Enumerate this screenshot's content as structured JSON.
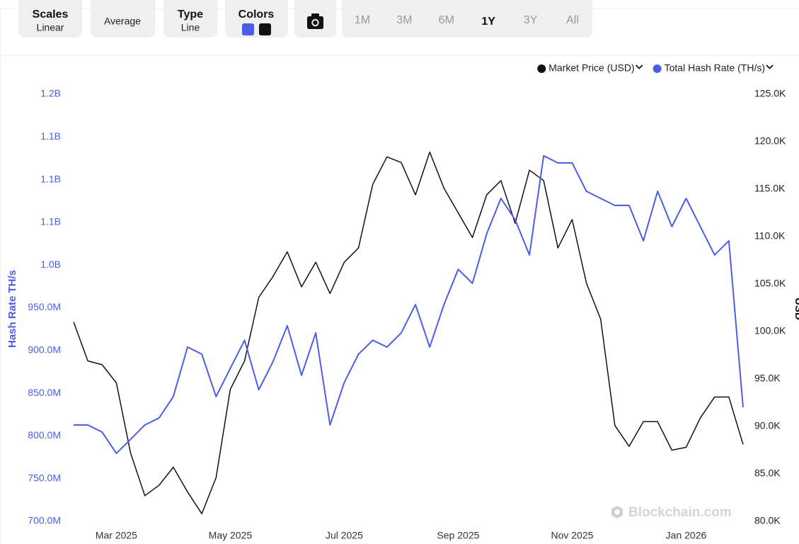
{
  "toolbar": {
    "scales": {
      "title": "Scales",
      "value": "Linear"
    },
    "average": "Average",
    "type": {
      "title": "Type",
      "value": "Line"
    },
    "colors_title": "Colors",
    "ranges": [
      "1M",
      "3M",
      "6M",
      "1Y",
      "3Y",
      "All"
    ],
    "active_range": 3
  },
  "watermark": "Blockchain.com",
  "chart_data": {
    "type": "line",
    "y_label": "Hash Rate TH/s",
    "y2_label": "USD",
    "categories": [
      null,
      null,
      null,
      "Mar 2025",
      null,
      null,
      null,
      null,
      null,
      null,
      null,
      "May 2025",
      null,
      null,
      null,
      null,
      null,
      null,
      null,
      "Jul 2025",
      null,
      null,
      null,
      null,
      null,
      null,
      null,
      "Sep 2025",
      null,
      null,
      null,
      null,
      null,
      null,
      null,
      "Nov 2025",
      null,
      null,
      null,
      null,
      null,
      null,
      null,
      "Jan 2026",
      null,
      null,
      null,
      null
    ],
    "series": [
      {
        "name": "Market Price (USD)",
        "color": "#111111",
        "axis": "y2",
        "values": [
          101000,
          96900,
          96500,
          94600,
          87200,
          82700,
          83800,
          85700,
          83100,
          80800,
          84600,
          93900,
          96900,
          103600,
          105800,
          108400,
          104700,
          107300,
          104000,
          107300,
          108800,
          115500,
          118400,
          117800,
          114400,
          118900,
          115100,
          112500,
          109900,
          114400,
          115900,
          111400,
          117000,
          115900,
          108800,
          111800,
          105100,
          101300,
          90100,
          87900,
          90500,
          90500,
          87500,
          87800,
          90900,
          93100,
          93100,
          88100
        ]
      },
      {
        "name": "Total Hash Rate (TH/s)",
        "color": "#4b5ee4",
        "axis": "y",
        "values": [
          812800000,
          812800000,
          804500000,
          779600000,
          796000000,
          812800000,
          821000000,
          846000000,
          904000000,
          895700000,
          846000000,
          879000000,
          912000000,
          854000000,
          887000000,
          929000000,
          871000000,
          920600000,
          812800000,
          862500000,
          895700000,
          912000000,
          904000000,
          920600000,
          953700000,
          904000000,
          953700000,
          995000000,
          978600000,
          1036600000,
          1078000000,
          1053000000,
          1011800000,
          1127900000,
          1119600000,
          1119600000,
          1086400000,
          1078000000,
          1069800000,
          1069800000,
          1028400000,
          1086400000,
          1045000000,
          1078000000,
          1045000000,
          1011800000,
          1028400000,
          833500000
        ]
      }
    ],
    "ylim": [
      700000000,
      1200000000
    ],
    "yticks": [
      {
        "value": 700000000,
        "label": "700.0M"
      },
      {
        "value": 750000000,
        "label": "750.0M"
      },
      {
        "value": 800000000,
        "label": "800.0M"
      },
      {
        "value": 850000000,
        "label": "850.0M"
      },
      {
        "value": 900000000,
        "label": "900.0M"
      },
      {
        "value": 950000000,
        "label": "950.0M"
      },
      {
        "value": 1000000000,
        "label": "1.0B"
      },
      {
        "value": 1050000000,
        "label": "1.1B"
      },
      {
        "value": 1100000000,
        "label": "1.1B"
      },
      {
        "value": 1150000000,
        "label": "1.1B"
      },
      {
        "value": 1200000000,
        "label": "1.2B"
      }
    ],
    "y2lim": [
      80000,
      125000
    ],
    "y2ticks": [
      {
        "value": 80000,
        "label": "80.0K"
      },
      {
        "value": 85000,
        "label": "85.0K"
      },
      {
        "value": 90000,
        "label": "90.0K"
      },
      {
        "value": 95000,
        "label": "95.0K"
      },
      {
        "value": 100000,
        "label": "100.0K"
      },
      {
        "value": 105000,
        "label": "105.0K"
      },
      {
        "value": 110000,
        "label": "110.0K"
      },
      {
        "value": 115000,
        "label": "115.0K"
      },
      {
        "value": 120000,
        "label": "120.0K"
      },
      {
        "value": 125000,
        "label": "125.0K"
      }
    ],
    "grid": false
  }
}
